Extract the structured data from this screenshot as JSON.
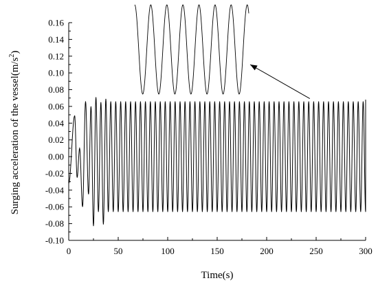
{
  "chart_data": {
    "type": "line",
    "xlabel": "Time(s)",
    "ylabel_main": "Surging acceleration of the vessel(m/s",
    "ylabel_sup": "2",
    "ylabel_close": ")",
    "xlim": [
      0,
      300
    ],
    "ylim": [
      -0.1,
      0.16
    ],
    "x_ticks": [
      "0",
      "50",
      "100",
      "150",
      "200",
      "250",
      "300"
    ],
    "y_ticks": [
      "-0.10",
      "-0.08",
      "-0.06",
      "-0.04",
      "-0.02",
      "0.00",
      "0.02",
      "0.04",
      "0.06",
      "0.08",
      "0.10",
      "0.12",
      "0.14",
      "0.16"
    ],
    "grid": false,
    "line_color": "#000000",
    "series": [
      {
        "period_s": 5.0,
        "t_start": 0,
        "t_end": 300,
        "transient_peaks": [
          {
            "t": 6,
            "y": 0.049
          },
          {
            "t": 8.5,
            "y": -0.025
          },
          {
            "t": 11,
            "y": 0.01
          },
          {
            "t": 14,
            "y": -0.06
          },
          {
            "t": 17,
            "y": 0.066
          },
          {
            "t": 20,
            "y": -0.045
          },
          {
            "t": 22.5,
            "y": 0.06
          },
          {
            "t": 25,
            "y": -0.083
          },
          {
            "t": 27.5,
            "y": 0.071
          },
          {
            "t": 30,
            "y": -0.066
          },
          {
            "t": 32.5,
            "y": 0.065
          },
          {
            "t": 35,
            "y": -0.081
          },
          {
            "t": 37.5,
            "y": 0.069
          }
        ],
        "steady_max": 0.066,
        "steady_min": -0.066,
        "y_start": -0.032
      }
    ],
    "zoom_inset": {
      "cycles": 7,
      "zoom_from_t": 245
    }
  }
}
